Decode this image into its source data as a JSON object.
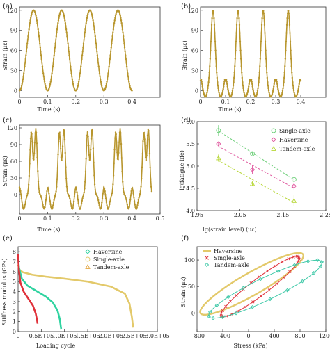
{
  "colors": {
    "gold": "#b8962e",
    "haversine_green": "#2fd3a0",
    "single_yellow": "#e3c96a",
    "tandem_orange": "#e3a640",
    "red": "#e0313a",
    "teal": "#3fc9a8",
    "single_green": "#6ecf7a",
    "haversine_pink": "#e05aa0",
    "tandem_lime": "#b6d634"
  },
  "chart_data": [
    {
      "id": "a",
      "panel_label": "(a)",
      "type": "line",
      "xlabel": "Time (s)",
      "ylabel": "Strain (με)",
      "xlim": [
        0,
        0.5
      ],
      "ylim": [
        -10,
        125
      ],
      "xticks": [
        0,
        0.1,
        0.2,
        0.3,
        0.4
      ],
      "yticks": [
        0,
        30,
        60,
        90,
        120
      ],
      "waveform": "haversine",
      "period": 0.1,
      "amplitude": 120,
      "t_end": 0.4
    },
    {
      "id": "b",
      "panel_label": "(b)",
      "type": "line",
      "xlabel": "Time (s)",
      "ylabel": "Strain (με)",
      "xlim": [
        0,
        0.5
      ],
      "ylim": [
        -10,
        125
      ],
      "xticks": [
        0,
        0.1,
        0.2,
        0.3,
        0.4
      ],
      "yticks": [
        0,
        30,
        60,
        90,
        120
      ],
      "waveform": "single-axle",
      "period": 0.1,
      "amplitude": 120,
      "t_end": 0.4
    },
    {
      "id": "c",
      "panel_label": "(c)",
      "type": "line",
      "xlabel": "Time (s)",
      "ylabel": "Strain (με)",
      "xlim": [
        0,
        0.5
      ],
      "ylim": [
        -35,
        125
      ],
      "xticks": [
        0,
        0.1,
        0.2,
        0.3,
        0.4,
        0.5
      ],
      "yticks": [
        0,
        30,
        60,
        90,
        120
      ],
      "waveform": "tandem-axle",
      "period": 0.1,
      "amplitude": 120,
      "t_end": 0.47
    },
    {
      "id": "d",
      "panel_label": "(d)",
      "type": "scatter",
      "xlabel": "lg(strain level) (με)",
      "ylabel": "lg(fatigue life)",
      "xlim": [
        1.95,
        2.25
      ],
      "ylim": [
        4.0,
        6.0
      ],
      "xticks": [
        1.95,
        2.05,
        2.15,
        2.25
      ],
      "xtick_labels": [
        "1.95",
        "2.05",
        "2.15",
        "2.25"
      ],
      "yticks": [
        4.0,
        4.5,
        5.0,
        5.5,
        6.0
      ],
      "ytick_labels": [
        "4.0",
        "4.5",
        "5.0",
        "5.5",
        "6.0"
      ],
      "legend_position": "top-right",
      "series": [
        {
          "name": "Single-axle",
          "marker": "circle",
          "color_key": "single_green",
          "x": [
            2.0,
            2.079,
            2.176
          ],
          "y": [
            5.8,
            5.28,
            4.7
          ],
          "err": [
            0.12,
            0.03,
            0.05
          ]
        },
        {
          "name": "Haversine",
          "marker": "diamond",
          "color_key": "haversine_pink",
          "x": [
            2.0,
            2.079,
            2.176
          ],
          "y": [
            5.5,
            4.92,
            4.55
          ],
          "err": [
            0.05,
            0.1,
            0.08
          ]
        },
        {
          "name": "Tandem-axle",
          "marker": "triangle",
          "color_key": "tandem_lime",
          "x": [
            2.0,
            2.079,
            2.176
          ],
          "y": [
            5.18,
            4.6,
            4.22
          ],
          "err": [
            0.08,
            0.03,
            0.12
          ]
        }
      ]
    },
    {
      "id": "e",
      "panel_label": "(e)",
      "type": "line",
      "xlabel": "Loading cycle",
      "ylabel": "Stiffness modulus (GPa)",
      "xlim": [
        0,
        300000
      ],
      "ylim": [
        0,
        8.5
      ],
      "xticks": [
        0,
        50000,
        100000,
        150000,
        200000,
        250000,
        300000
      ],
      "xtick_labels": [
        "0",
        "0.5E+05",
        "1.0E+05",
        "1.5E+05",
        "2.0E+05",
        "2.5E+05",
        "3.0E+05"
      ],
      "yticks": [
        0,
        1,
        2,
        3,
        4,
        5,
        6,
        7,
        8
      ],
      "ytick_labels": [
        "0",
        "1",
        "2",
        "3",
        "4",
        "5",
        "6",
        "7",
        "8"
      ],
      "legend_position": "top-right",
      "legend": [
        {
          "name": "Haversine",
          "marker": "diamond",
          "color_key": "haversine_green"
        },
        {
          "name": "Single-axle",
          "marker": "circle",
          "color_key": "single_yellow"
        },
        {
          "name": "Tandem-axle",
          "marker": "triangle",
          "color_key": "tandem_orange"
        }
      ],
      "series": [
        {
          "color_key": "single_yellow",
          "x": [
            0,
            3000,
            10000,
            30000,
            60000,
            100000,
            150000,
            200000,
            230000,
            240000,
            245000,
            248000
          ],
          "y": [
            6.7,
            6.2,
            5.95,
            5.7,
            5.5,
            5.3,
            5.0,
            4.5,
            3.8,
            2.8,
            1.5,
            0.4
          ]
        },
        {
          "color_key": "haversine_green",
          "x": [
            0,
            2000,
            8000,
            20000,
            40000,
            60000,
            75000,
            85000,
            90000,
            92000,
            93000
          ],
          "y": [
            7.3,
            6.4,
            5.3,
            4.6,
            4.05,
            3.5,
            2.9,
            2.1,
            1.2,
            0.5,
            0.2
          ]
        },
        {
          "color_key": "red",
          "x": [
            0,
            1500,
            5000,
            12000,
            22000,
            32000,
            38000,
            41000,
            42000
          ],
          "y": [
            7.8,
            6.3,
            4.9,
            4.0,
            3.3,
            2.6,
            1.8,
            1.1,
            0.8
          ]
        }
      ]
    },
    {
      "id": "f",
      "panel_label": "(f)",
      "type": "line",
      "xlabel": "Stress (kPa)",
      "ylabel": "Strain (με)",
      "xlim": [
        -800,
        1200
      ],
      "ylim": [
        -35,
        125
      ],
      "xticks": [
        -800,
        -400,
        0,
        400,
        800,
        1200
      ],
      "xtick_labels": [
        "−800",
        "−400",
        "0",
        "400",
        "800",
        "1200"
      ],
      "yticks": [
        0,
        50,
        100
      ],
      "ytick_labels": [
        "0",
        "50",
        "100"
      ],
      "legend_position": "top-left",
      "legend": [
        {
          "name": "Haversine",
          "marker": "none",
          "color_key": "single_yellow"
        },
        {
          "name": "Single-axle",
          "marker": "cross",
          "color_key": "red"
        },
        {
          "name": "Tandem-axle",
          "marker": "diamond",
          "color_key": "teal"
        }
      ]
    }
  ]
}
